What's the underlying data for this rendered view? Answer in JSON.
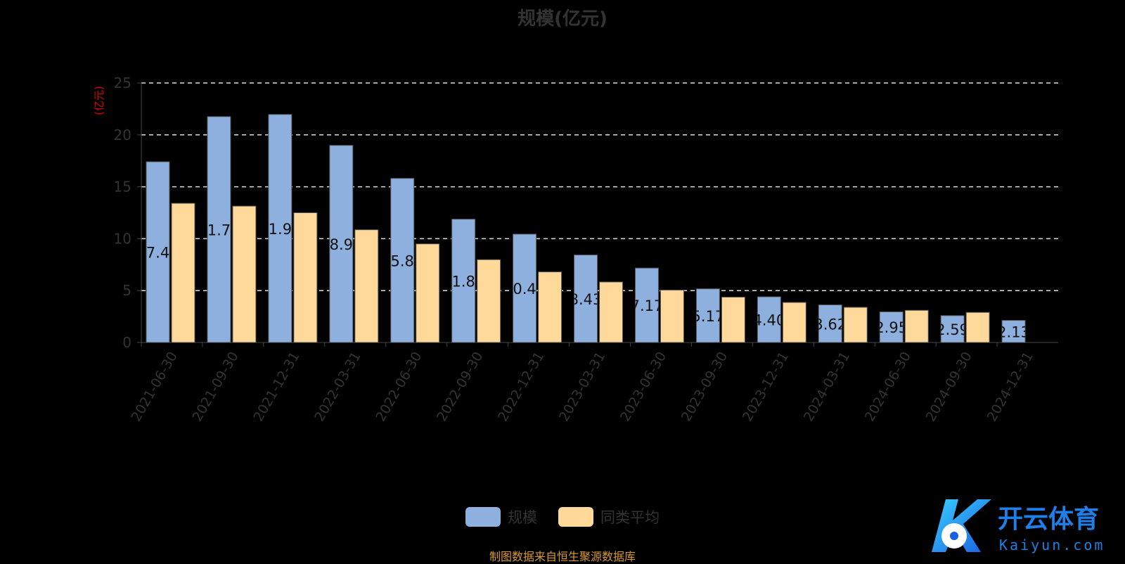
{
  "chart_data": {
    "type": "bar",
    "title": "规模(亿元)",
    "ylabel": "(亿元)",
    "xlabel": "",
    "ylim": [
      0,
      25
    ],
    "yticks": [
      0,
      5,
      10,
      15,
      20,
      25
    ],
    "grid": true,
    "legend_position": "bottom",
    "categories": [
      "2021-06-30",
      "2021-09-30",
      "2021-12-31",
      "2022-03-31",
      "2022-06-30",
      "2022-09-30",
      "2022-12-31",
      "2023-03-31",
      "2023-06-30",
      "2023-09-30",
      "2023-12-31",
      "2024-03-31",
      "2024-06-30",
      "2024-09-30",
      "2024-12-31"
    ],
    "series": [
      {
        "name": "规模",
        "color": "#8eb0de",
        "values": [
          17.41,
          21.76,
          21.97,
          18.99,
          15.81,
          11.88,
          10.44,
          8.43,
          7.17,
          5.17,
          4.4,
          3.62,
          2.95,
          2.59,
          2.13
        ],
        "data_labels": [
          "17.41",
          "21.76",
          "21.97",
          "18.99",
          "15.81",
          "11.88",
          "10.44",
          "8.43",
          "7.17",
          "5.17",
          "4.40",
          "3.62",
          "2.95",
          "2.59",
          "2.13"
        ]
      },
      {
        "name": "同类平均",
        "color": "#ffd99a",
        "values": [
          13.41,
          13.14,
          12.5,
          10.86,
          9.5,
          7.98,
          6.8,
          5.83,
          5.05,
          4.37,
          3.86,
          3.39,
          3.1,
          2.9,
          null
        ]
      }
    ]
  },
  "source_note": "制图数据来自恒生聚源数据库",
  "watermark": {
    "text": "开云体育",
    "subtext": "Kaiyun.com"
  }
}
